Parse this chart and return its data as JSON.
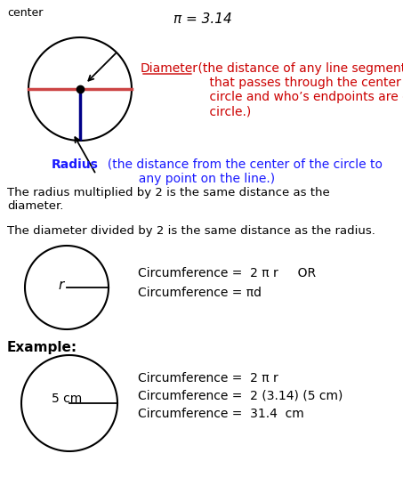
{
  "bg_color": "#ffffff",
  "text_color_black": "#000000",
  "text_color_red": "#cc0000",
  "text_color_blue": "#0000cc",
  "pi_label": "π = 3.14",
  "center_label": "center",
  "diameter_label": "Diameter",
  "diameter_desc": " (the distance of any line segment\n    that passes through the center of the\n    circle and who’s endpoints are on the\n    circle.)",
  "radius_label": "Radius",
  "radius_desc": "  (the distance from the center of the circle to\n          any point on the line.)",
  "text1": "The radius multiplied by 2 is the same distance as the\ndiameter.",
  "text2": "The diameter divided by 2 is the same distance as the radius.",
  "circ_formula1": "Circumference =  2 π r     OR",
  "circ_formula2": "Circumference = πd",
  "example_label": "Example:",
  "ex_circ1": "Circumference =  2 π r",
  "ex_circ2": "Circumference =  2 (3.14) (5 cm)",
  "ex_circ3": "Circumference =  31.4  cm"
}
